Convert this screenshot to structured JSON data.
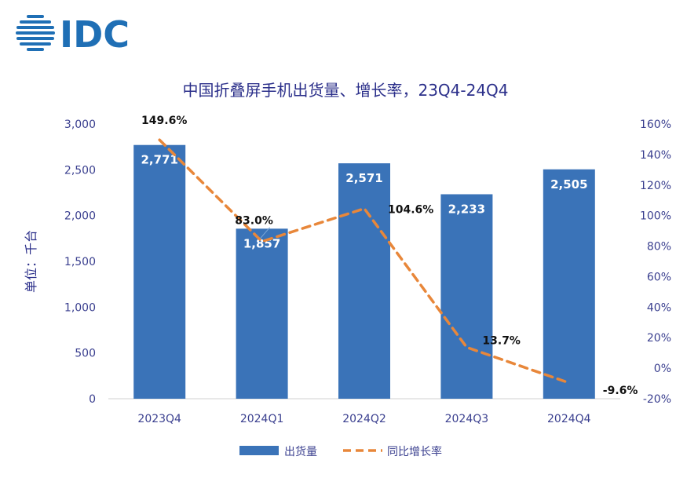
{
  "logo_text": "IDC",
  "chart_data": {
    "type": "bar",
    "title": "中国折叠屏手机出货量、增长率，23Q4-24Q4",
    "ylabel": "单位：千台",
    "categories": [
      "2023Q4",
      "2024Q1",
      "2024Q2",
      "2024Q3",
      "2024Q4"
    ],
    "ylim": [
      0,
      3000
    ],
    "y_ticks": [
      "0",
      "500",
      "1,000",
      "1,500",
      "2,000",
      "2,500",
      "3,000"
    ],
    "y2lim": [
      -20,
      160
    ],
    "y2_ticks": [
      "-20%",
      "0%",
      "20%",
      "40%",
      "60%",
      "80%",
      "100%",
      "120%",
      "140%",
      "160%"
    ],
    "series": [
      {
        "name": "出货量",
        "type": "bar",
        "axis": "left",
        "color": "#3a73b8",
        "values": [
          2771,
          1857,
          2571,
          2233,
          2505
        ],
        "labels": [
          "2,771",
          "1,857",
          "2,571",
          "2,233",
          "2,505"
        ]
      },
      {
        "name": "同比增长率",
        "type": "line",
        "axis": "right",
        "color": "#e8873a",
        "style": "dashed",
        "values": [
          149.6,
          83.0,
          104.6,
          13.7,
          -9.6
        ],
        "labels": [
          "149.6%",
          "83.0%",
          "104.6%",
          "13.7%",
          "-9.6%"
        ]
      }
    ],
    "grid": false,
    "legend": "bottom"
  }
}
